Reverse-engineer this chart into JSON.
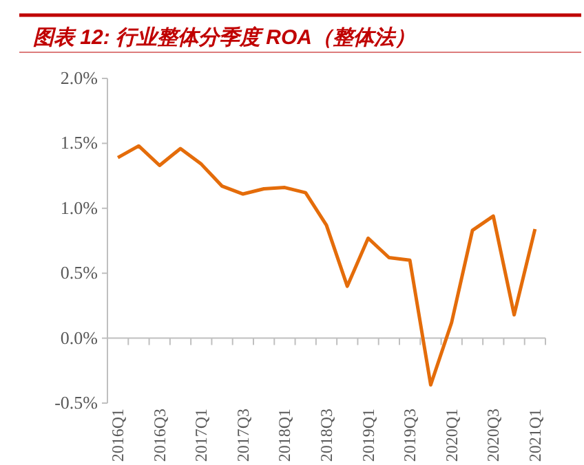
{
  "chart_data": {
    "type": "line",
    "title": "图表 12: 行业整体分季度 ROA（整体法）",
    "categories": [
      "2016Q1",
      null,
      "2016Q3",
      null,
      "2017Q1",
      null,
      "2017Q3",
      null,
      "2018Q1",
      null,
      "2018Q3",
      null,
      "2019Q1",
      null,
      "2019Q3",
      null,
      "2020Q1",
      null,
      "2020Q3",
      null,
      "2021Q1"
    ],
    "series": [
      {
        "color": "#e46c0a",
        "values": [
          1.39,
          1.48,
          1.33,
          1.46,
          1.34,
          1.17,
          1.11,
          1.15,
          1.16,
          1.12,
          0.87,
          0.4,
          0.77,
          0.62,
          0.6,
          -0.36,
          0.12,
          0.83,
          0.94,
          0.18,
          0.84
        ]
      }
    ],
    "ylim": [
      -0.5,
      2.0
    ],
    "yticks": [
      {
        "value": -0.5,
        "label": "-0.5%"
      },
      {
        "value": 0.0,
        "label": "0.0%"
      },
      {
        "value": 0.5,
        "label": "0.5%"
      },
      {
        "value": 1.0,
        "label": "1.0%"
      },
      {
        "value": 1.5,
        "label": "1.5%"
      },
      {
        "value": 2.0,
        "label": "2.0%"
      }
    ],
    "marker": "none",
    "line_style": "solid"
  }
}
